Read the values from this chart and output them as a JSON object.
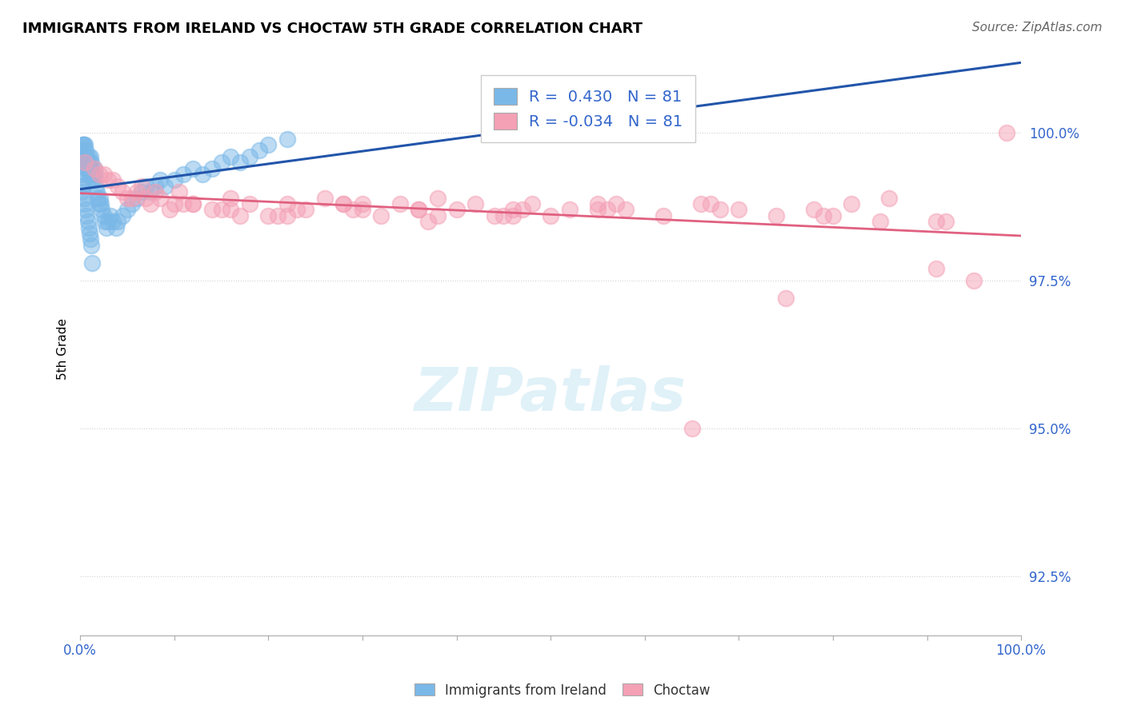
{
  "title": "IMMIGRANTS FROM IRELAND VS CHOCTAW 5TH GRADE CORRELATION CHART",
  "source": "Source: ZipAtlas.com",
  "ylabel": "5th Grade",
  "R_blue": 0.43,
  "N_blue": 81,
  "R_pink": -0.034,
  "N_pink": 81,
  "legend_label_blue": "Immigrants from Ireland",
  "legend_label_pink": "Choctaw",
  "blue_color": "#7ab8e8",
  "pink_color": "#f4a0b5",
  "blue_line_color": "#2255aa",
  "pink_line_color": "#e06080",
  "background_color": "#ffffff",
  "blue_scatter_x": [
    0.1,
    0.15,
    0.2,
    0.2,
    0.25,
    0.3,
    0.3,
    0.35,
    0.4,
    0.4,
    0.5,
    0.5,
    0.6,
    0.6,
    0.7,
    0.7,
    0.8,
    0.8,
    0.9,
    0.9,
    1.0,
    1.0,
    1.1,
    1.1,
    1.2,
    1.2,
    1.3,
    1.3,
    1.4,
    1.5,
    1.5,
    1.6,
    1.7,
    1.8,
    1.9,
    2.0,
    2.1,
    2.2,
    2.3,
    2.5,
    2.6,
    2.8,
    3.0,
    3.2,
    3.5,
    3.8,
    4.0,
    4.5,
    5.0,
    5.5,
    6.0,
    6.5,
    7.0,
    7.5,
    8.0,
    8.5,
    9.0,
    10.0,
    11.0,
    12.0,
    13.0,
    14.0,
    15.0,
    16.0,
    17.0,
    18.0,
    19.0,
    20.0,
    22.0,
    0.2,
    0.3,
    0.4,
    0.5,
    0.6,
    0.7,
    0.8,
    0.9,
    1.0,
    1.1,
    1.2,
    1.3
  ],
  "blue_scatter_y": [
    99.1,
    99.3,
    99.5,
    99.7,
    99.8,
    99.6,
    99.8,
    99.7,
    99.5,
    99.8,
    99.6,
    99.8,
    99.7,
    99.5,
    99.4,
    99.6,
    99.3,
    99.5,
    99.4,
    99.6,
    99.3,
    99.5,
    99.4,
    99.6,
    99.3,
    99.5,
    99.2,
    99.4,
    99.3,
    99.2,
    99.4,
    99.3,
    99.1,
    99.0,
    98.9,
    98.8,
    98.9,
    98.8,
    98.7,
    98.6,
    98.5,
    98.4,
    98.5,
    98.6,
    98.5,
    98.4,
    98.5,
    98.6,
    98.7,
    98.8,
    98.9,
    99.0,
    99.1,
    99.0,
    99.1,
    99.2,
    99.1,
    99.2,
    99.3,
    99.4,
    99.3,
    99.4,
    99.5,
    99.6,
    99.5,
    99.6,
    99.7,
    99.8,
    99.9,
    99.0,
    99.1,
    98.9,
    98.8,
    98.7,
    98.6,
    98.5,
    98.4,
    98.3,
    98.2,
    98.1,
    97.8
  ],
  "pink_scatter_x": [
    0.5,
    1.5,
    2.5,
    3.5,
    4.5,
    5.5,
    6.5,
    7.5,
    8.5,
    9.5,
    10.5,
    12.0,
    14.0,
    16.0,
    18.0,
    20.0,
    22.0,
    24.0,
    26.0,
    28.0,
    30.0,
    32.0,
    34.0,
    36.0,
    38.0,
    40.0,
    42.0,
    44.0,
    46.0,
    48.0,
    50.0,
    52.0,
    55.0,
    58.0,
    62.0,
    66.0,
    70.0,
    74.0,
    78.0,
    82.0,
    86.0,
    91.0,
    95.0,
    98.5,
    3.0,
    5.0,
    8.0,
    12.0,
    17.0,
    23.0,
    30.0,
    38.0,
    47.0,
    57.0,
    68.0,
    80.0,
    92.0,
    2.0,
    4.0,
    7.0,
    11.0,
    16.0,
    22.0,
    29.0,
    37.0,
    46.0,
    56.0,
    67.0,
    79.0,
    91.0,
    6.0,
    10.0,
    15.0,
    21.0,
    28.0,
    36.0,
    45.0,
    55.0,
    65.0,
    75.0,
    85.0
  ],
  "pink_scatter_y": [
    99.5,
    99.4,
    99.3,
    99.2,
    99.0,
    98.9,
    99.1,
    98.8,
    98.9,
    98.7,
    99.0,
    98.8,
    98.7,
    98.9,
    98.8,
    98.6,
    98.8,
    98.7,
    98.9,
    98.8,
    98.7,
    98.6,
    98.8,
    98.7,
    98.9,
    98.7,
    98.8,
    98.6,
    98.7,
    98.8,
    98.6,
    98.7,
    98.8,
    98.7,
    98.6,
    98.8,
    98.7,
    98.6,
    98.7,
    98.8,
    98.9,
    97.7,
    97.5,
    100.0,
    99.2,
    98.9,
    99.0,
    98.8,
    98.6,
    98.7,
    98.8,
    98.6,
    98.7,
    98.8,
    98.7,
    98.6,
    98.5,
    99.3,
    99.1,
    98.9,
    98.8,
    98.7,
    98.6,
    98.7,
    98.5,
    98.6,
    98.7,
    98.8,
    98.6,
    98.5,
    99.0,
    98.8,
    98.7,
    98.6,
    98.8,
    98.7,
    98.6,
    98.7,
    95.0,
    97.2,
    98.5
  ]
}
